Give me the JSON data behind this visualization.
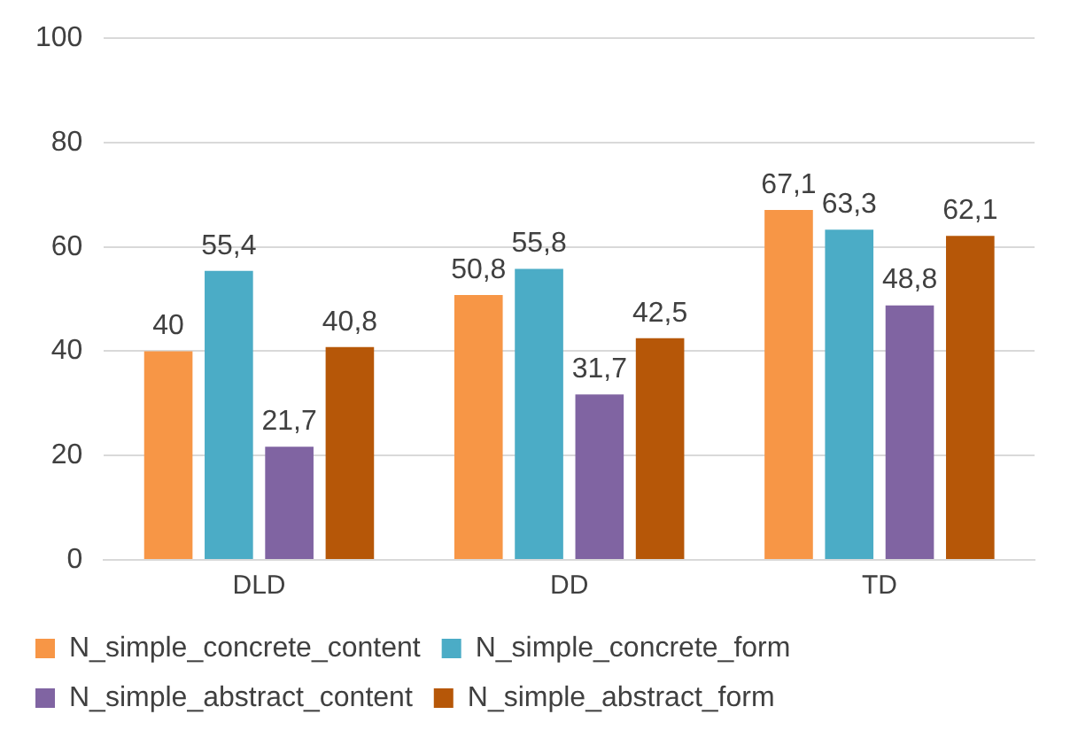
{
  "chart_data": {
    "type": "bar",
    "categories": [
      "DLD",
      "DD",
      "TD"
    ],
    "series": [
      {
        "name": "N_simple_concrete_content",
        "color": "#f79646",
        "values": [
          40,
          50.8,
          67.1
        ],
        "value_labels": [
          "40",
          "50,8",
          "67,1"
        ]
      },
      {
        "name": "N_simple_concrete_form",
        "color": "#4bacc6",
        "values": [
          55.4,
          55.8,
          63.3
        ],
        "value_labels": [
          "55,4",
          "55,8",
          "63,3"
        ]
      },
      {
        "name": "N_simple_abstract_content",
        "color": "#8064a2",
        "values": [
          21.7,
          31.7,
          48.8
        ],
        "value_labels": [
          "21,7",
          "31,7",
          "48,8"
        ]
      },
      {
        "name": "N_simple_abstract_form",
        "color": "#b65708",
        "values": [
          40.8,
          42.5,
          62.1
        ],
        "value_labels": [
          "40,8",
          "42,5",
          "62,1"
        ]
      }
    ],
    "ylim": [
      0,
      100
    ],
    "yticks": [
      0,
      20,
      40,
      60,
      80,
      100
    ],
    "grid": "y",
    "legend": "bottom"
  }
}
